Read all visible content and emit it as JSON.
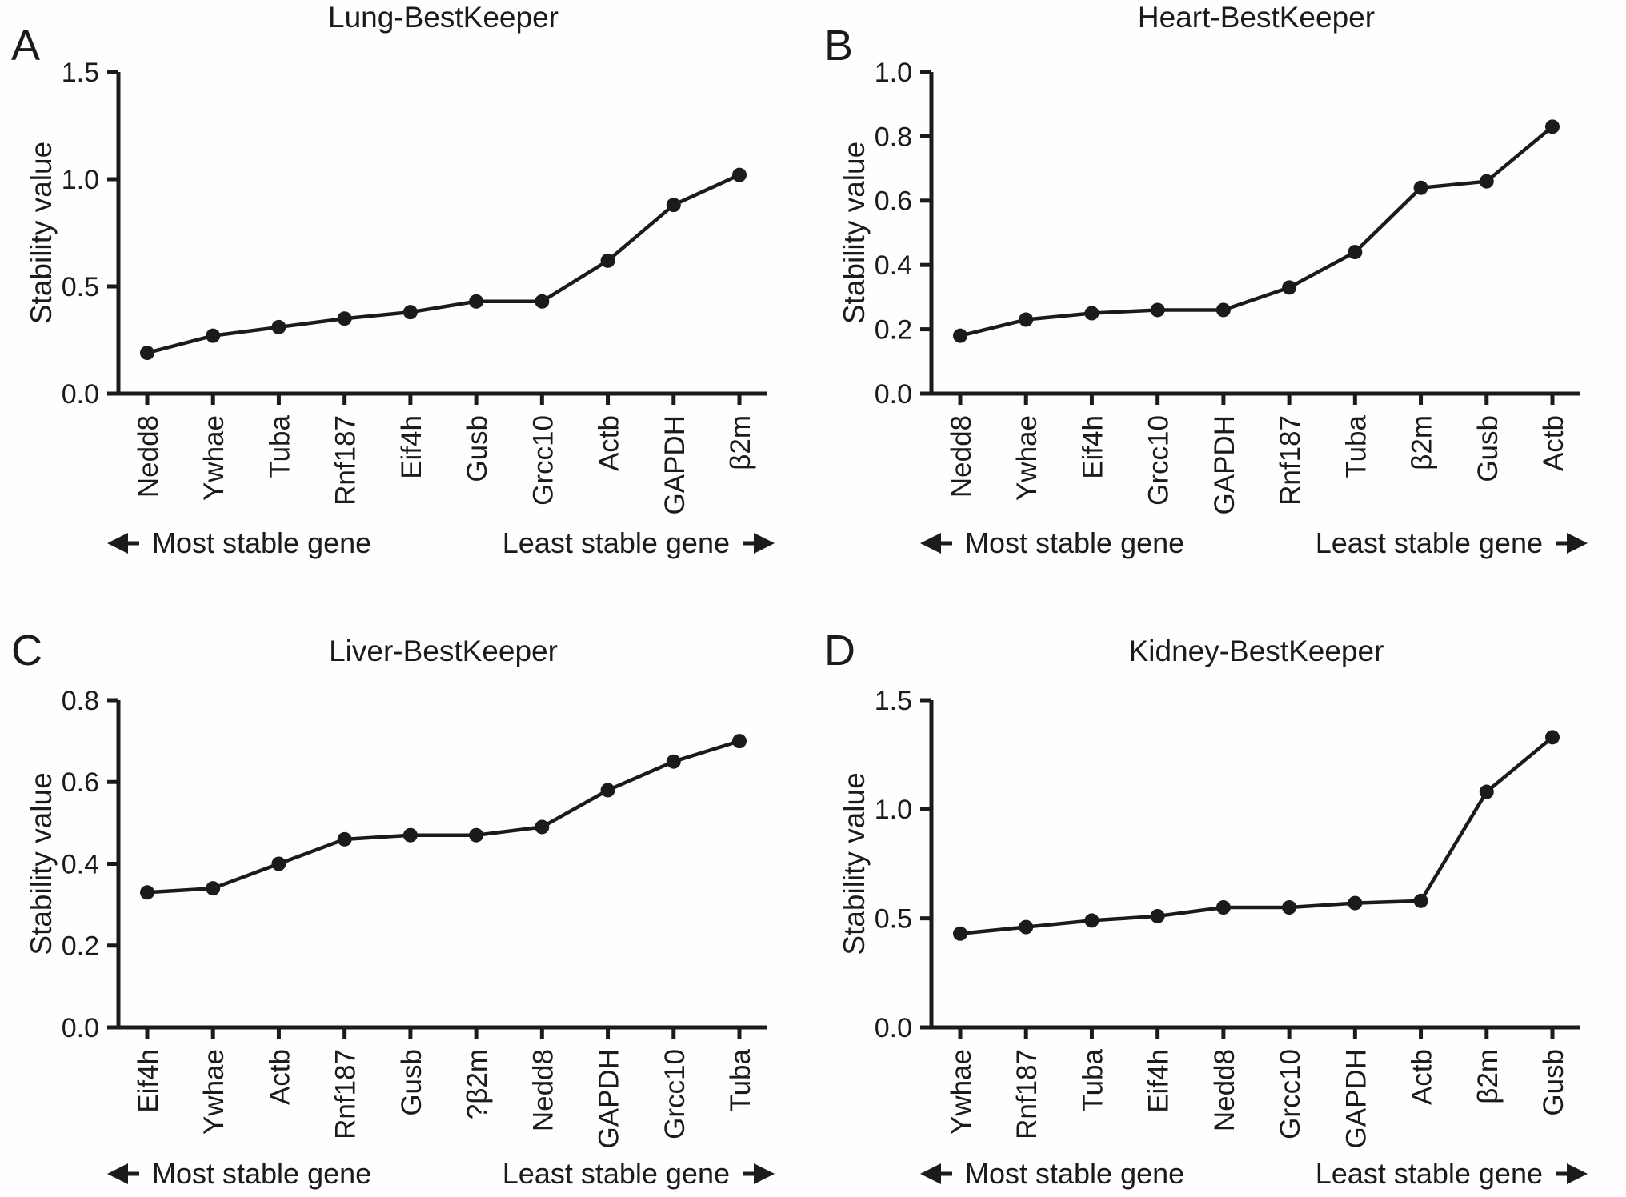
{
  "page": {
    "background_color": "#fefefe",
    "ink_color": "#1b1b1b"
  },
  "shared": {
    "ylabel": "Stability value",
    "icons": {
      "left_arrow": "left-arrow-icon",
      "right_arrow": "right-arrow-icon"
    }
  },
  "chart_data": [
    {
      "type": "line",
      "panel_label": "A",
      "title": "Lung-BestKeeper",
      "ylabel": "Stability value",
      "xlabel": "",
      "categories": [
        "Nedd8",
        "Ywhae",
        "Tuba",
        "Rnf187",
        "Eif4h",
        "Gusb",
        "Grcc10",
        "Actb",
        "GAPDH",
        "β2m"
      ],
      "values": [
        0.19,
        0.27,
        0.31,
        0.35,
        0.38,
        0.43,
        0.43,
        0.62,
        0.88,
        1.02
      ],
      "ylim": [
        0.0,
        1.5
      ],
      "yticks": [
        0.0,
        0.5,
        1.0,
        1.5
      ],
      "ytick_labels": [
        "0.0",
        "0.5",
        "1.0",
        "1.5"
      ],
      "grid": false,
      "legend": "none",
      "annotations": {
        "left": "Most stable gene",
        "right": "Least stable gene"
      }
    },
    {
      "type": "line",
      "panel_label": "B",
      "title": "Heart-BestKeeper",
      "ylabel": "Stability value",
      "xlabel": "",
      "categories": [
        "Nedd8",
        "Ywhae",
        "Eif4h",
        "Grcc10",
        "GAPDH",
        "Rnf187",
        "Tuba",
        "β2m",
        "Gusb",
        "Actb"
      ],
      "values": [
        0.18,
        0.23,
        0.25,
        0.26,
        0.26,
        0.33,
        0.44,
        0.64,
        0.66,
        0.83
      ],
      "ylim": [
        0.0,
        1.0
      ],
      "yticks": [
        0.0,
        0.2,
        0.4,
        0.6,
        0.8,
        1.0
      ],
      "ytick_labels": [
        "0.0",
        "0.2",
        "0.4",
        "0.6",
        "0.8",
        "1.0"
      ],
      "grid": false,
      "legend": "none",
      "annotations": {
        "left": "Most stable gene",
        "right": "Least stable gene"
      }
    },
    {
      "type": "line",
      "panel_label": "C",
      "title": "Liver-BestKeeper",
      "ylabel": "Stability value",
      "xlabel": "",
      "categories": [
        "Eif4h",
        "Ywhae",
        "Actb",
        "Rnf187",
        "Gusb",
        "?β2m",
        "Nedd8",
        "GAPDH",
        "Grcc10",
        "Tuba"
      ],
      "values": [
        0.33,
        0.34,
        0.4,
        0.46,
        0.47,
        0.47,
        0.49,
        0.58,
        0.65,
        0.7
      ],
      "ylim": [
        0.0,
        0.8
      ],
      "yticks": [
        0.0,
        0.2,
        0.4,
        0.6,
        0.8
      ],
      "ytick_labels": [
        "0.0",
        "0.2",
        "0.4",
        "0.6",
        "0.8"
      ],
      "grid": false,
      "legend": "none",
      "annotations": {
        "left": "Most stable gene",
        "right": "Least stable gene"
      }
    },
    {
      "type": "line",
      "panel_label": "D",
      "title": "Kidney-BestKeeper",
      "ylabel": "Stability value",
      "xlabel": "",
      "categories": [
        "Ywhae",
        "Rnf187",
        "Tuba",
        "Eif4h",
        "Nedd8",
        "Grcc10",
        "GAPDH",
        "Actb",
        "β2m",
        "Gusb"
      ],
      "values": [
        0.43,
        0.46,
        0.49,
        0.51,
        0.55,
        0.55,
        0.57,
        0.58,
        1.08,
        1.33
      ],
      "ylim": [
        0.0,
        1.5
      ],
      "yticks": [
        0.0,
        0.5,
        1.0,
        1.5
      ],
      "ytick_labels": [
        "0.0",
        "0.5",
        "1.0",
        "1.5"
      ],
      "grid": false,
      "legend": "none",
      "annotations": {
        "left": "Most stable gene",
        "right": "Least stable gene"
      }
    }
  ]
}
